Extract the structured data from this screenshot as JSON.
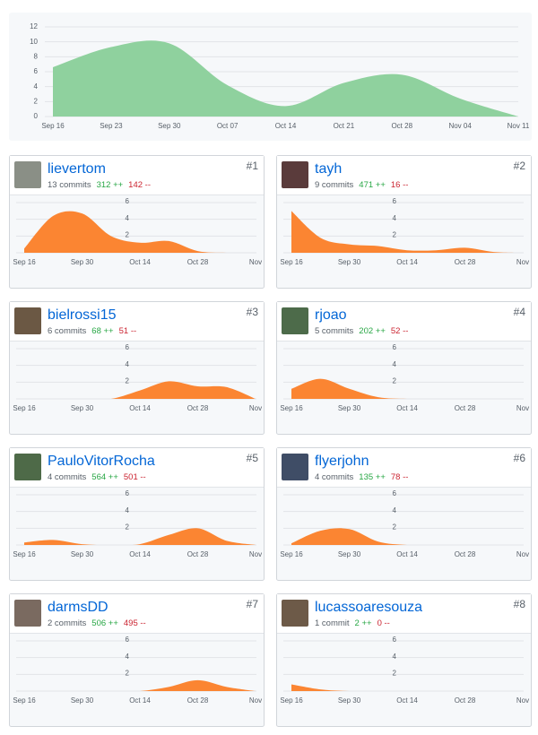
{
  "top_chart": {
    "type": "area",
    "color": "#8fd19e",
    "x": [
      "Sep 16",
      "Sep 23",
      "Sep 30",
      "Oct 07",
      "Oct 14",
      "Oct 21",
      "Oct 28",
      "Nov 04",
      "Nov 11"
    ],
    "values": [
      6.6,
      9.3,
      9.8,
      4.2,
      1.4,
      4.5,
      5.6,
      2.4,
      0
    ],
    "ylim": [
      0,
      12
    ],
    "yticks": [
      0,
      2,
      4,
      6,
      8,
      10,
      12
    ],
    "grid": true
  },
  "contributor_chart": {
    "type": "area",
    "color": "#fb8532",
    "x": [
      "Sep 16",
      null,
      "Sep 30",
      null,
      "Oct 14",
      null,
      "Oct 28",
      null,
      "Nov"
    ],
    "ylim": [
      0,
      6
    ],
    "yticks": [
      2,
      4,
      6
    ],
    "grid": true
  },
  "contributors": [
    {
      "rank": "#1",
      "name": "lievertom",
      "commits": "13 commits",
      "additions": "312 ++",
      "deletions": "142 --",
      "values": [
        0.5,
        4.4,
        4.7,
        2,
        1.2,
        1.4,
        0.2,
        0,
        0
      ]
    },
    {
      "rank": "#2",
      "name": "tayh",
      "commits": "9 commits",
      "additions": "471 ++",
      "deletions": "16 --",
      "values": [
        5,
        1.8,
        1,
        0.8,
        0.3,
        0.3,
        0.6,
        0.1,
        0
      ]
    },
    {
      "rank": "#3",
      "name": "bielrossi15",
      "commits": "6 commits",
      "additions": "68 ++",
      "deletions": "51 --",
      "values": [
        0,
        0,
        0,
        0,
        1,
        2.1,
        1.5,
        1.4,
        0
      ]
    },
    {
      "rank": "#4",
      "name": "rjoao",
      "commits": "5 commits",
      "additions": "202 ++",
      "deletions": "52 --",
      "values": [
        1.2,
        2.4,
        1.2,
        0.2,
        0,
        0,
        0,
        0,
        0
      ]
    },
    {
      "rank": "#5",
      "name": "PauloVitorRocha",
      "commits": "4 commits",
      "additions": "564 ++",
      "deletions": "501 --",
      "values": [
        0.3,
        0.6,
        0.1,
        0,
        0.1,
        1.2,
        2,
        0.5,
        0
      ]
    },
    {
      "rank": "#6",
      "name": "flyerjohn",
      "commits": "4 commits",
      "additions": "135 ++",
      "deletions": "78 --",
      "values": [
        0.2,
        1.7,
        1.9,
        0.4,
        0,
        0,
        0,
        0,
        0
      ]
    },
    {
      "rank": "#7",
      "name": "darmsDD",
      "commits": "2 commits",
      "additions": "506 ++",
      "deletions": "495 --",
      "values": [
        0,
        0,
        0,
        0,
        0,
        0.5,
        1.3,
        0.5,
        0
      ]
    },
    {
      "rank": "#8",
      "name": "lucassoaresouza",
      "commits": "1 commit",
      "additions": "2 ++",
      "deletions": "0 --",
      "values": [
        0.8,
        0.2,
        0,
        0,
        0,
        0,
        0,
        0,
        0
      ]
    }
  ]
}
